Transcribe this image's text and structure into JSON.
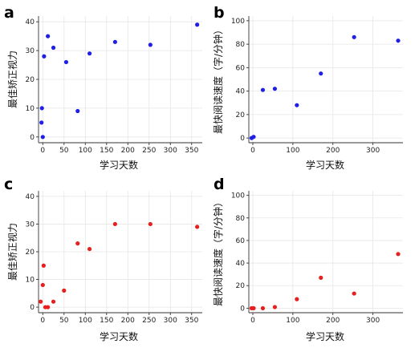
{
  "chart_data": [
    {
      "panel": "a",
      "type": "scatter",
      "xlabel": "学习天数",
      "ylabel": "最佳矫正视力",
      "xlim": [
        -10,
        375
      ],
      "ylim": [
        -2,
        42
      ],
      "xticks": [
        0,
        50,
        100,
        150,
        200,
        250,
        300,
        350
      ],
      "yticks": [
        0,
        10,
        20,
        30,
        40
      ],
      "color": "#1f1fe6",
      "points": [
        {
          "x": -3,
          "y": 5
        },
        {
          "x": -2,
          "y": 10
        },
        {
          "x": 0,
          "y": 0
        },
        {
          "x": 3,
          "y": 28
        },
        {
          "x": 12,
          "y": 35
        },
        {
          "x": 25,
          "y": 31
        },
        {
          "x": 55,
          "y": 26
        },
        {
          "x": 82,
          "y": 9
        },
        {
          "x": 110,
          "y": 29
        },
        {
          "x": 170,
          "y": 33
        },
        {
          "x": 253,
          "y": 32
        },
        {
          "x": 363,
          "y": 39
        }
      ]
    },
    {
      "panel": "b",
      "type": "scatter",
      "xlabel": "学习天数",
      "ylabel": "最快阅读速度（字/分钟）",
      "xlim": [
        -10,
        375
      ],
      "ylim": [
        -4,
        104
      ],
      "xticks": [
        0,
        100,
        200,
        300
      ],
      "yticks": [
        0,
        20,
        40,
        60,
        80,
        100
      ],
      "color": "#1f1fe6",
      "points": [
        {
          "x": -3,
          "y": 0
        },
        {
          "x": 2,
          "y": 1
        },
        {
          "x": 25,
          "y": 41
        },
        {
          "x": 55,
          "y": 42
        },
        {
          "x": 110,
          "y": 28
        },
        {
          "x": 170,
          "y": 55
        },
        {
          "x": 253,
          "y": 86
        },
        {
          "x": 363,
          "y": 83
        }
      ]
    },
    {
      "panel": "c",
      "type": "scatter",
      "xlabel": "学习天数",
      "ylabel": "最佳矫正视力",
      "xlim": [
        -10,
        375
      ],
      "ylim": [
        -2,
        42
      ],
      "xticks": [
        0,
        50,
        100,
        150,
        200,
        250,
        300,
        350
      ],
      "yticks": [
        0,
        10,
        20,
        30,
        40
      ],
      "color": "#e61f1f",
      "points": [
        {
          "x": -5,
          "y": 2
        },
        {
          "x": 0,
          "y": 8
        },
        {
          "x": 2,
          "y": 15
        },
        {
          "x": 6,
          "y": 0
        },
        {
          "x": 12,
          "y": 0
        },
        {
          "x": 25,
          "y": 2
        },
        {
          "x": 50,
          "y": 6
        },
        {
          "x": 82,
          "y": 23
        },
        {
          "x": 110,
          "y": 21
        },
        {
          "x": 170,
          "y": 30
        },
        {
          "x": 253,
          "y": 30
        },
        {
          "x": 363,
          "y": 29
        }
      ]
    },
    {
      "panel": "d",
      "type": "scatter",
      "xlabel": "学习天数",
      "ylabel": "最快阅读速度（字/分钟）",
      "xlim": [
        -10,
        375
      ],
      "ylim": [
        -4,
        104
      ],
      "xticks": [
        0,
        100,
        200,
        300
      ],
      "yticks": [
        0,
        20,
        40,
        60,
        80,
        100
      ],
      "color": "#e61f1f",
      "points": [
        {
          "x": -3,
          "y": 0
        },
        {
          "x": 2,
          "y": 0
        },
        {
          "x": 25,
          "y": 0
        },
        {
          "x": 55,
          "y": 1
        },
        {
          "x": 110,
          "y": 8
        },
        {
          "x": 170,
          "y": 27
        },
        {
          "x": 253,
          "y": 13
        },
        {
          "x": 363,
          "y": 48
        }
      ]
    }
  ]
}
